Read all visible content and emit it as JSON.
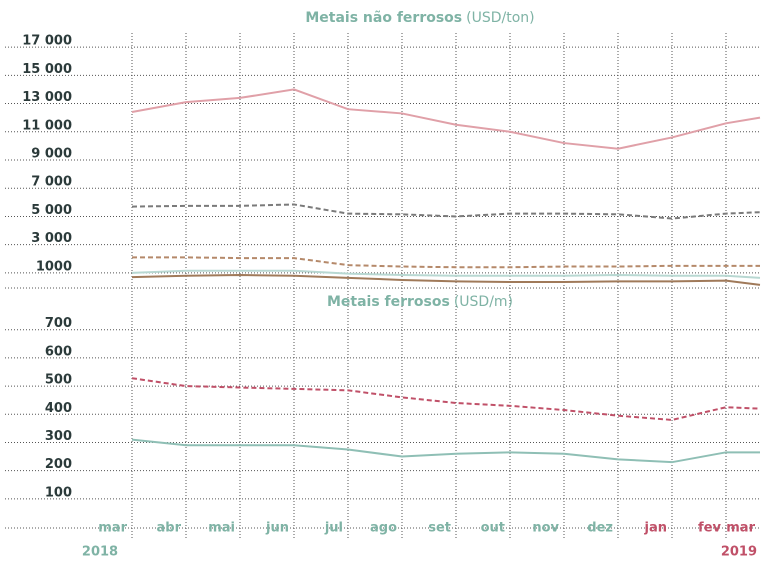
{
  "chart_data": [
    {
      "type": "line",
      "title": "Metais não ferrosos",
      "unit": "(USD/ton)",
      "title_color": "#7fb3a5",
      "ylim": [
        0,
        18000
      ],
      "yticks": [
        {
          "value": 1000,
          "label": "1000"
        },
        {
          "value": 3000,
          "label": "3 000"
        },
        {
          "value": 5000,
          "label": "5 000"
        },
        {
          "value": 7000,
          "label": "7 000"
        },
        {
          "value": 9000,
          "label": "9 000"
        },
        {
          "value": 11000,
          "label": "11 000"
        },
        {
          "value": 13000,
          "label": "13 000"
        },
        {
          "value": 15000,
          "label": "15 000"
        },
        {
          "value": 17000,
          "label": "17 000"
        }
      ],
      "grid": true,
      "series": [
        {
          "color": "#e0a0a8",
          "dash": false,
          "values": [
            12400,
            13100,
            13400,
            14000,
            12600,
            12300,
            11500,
            11000,
            10200,
            9800,
            10600,
            11600,
            12000
          ]
        },
        {
          "color": "#7a7a7a",
          "dash": true,
          "values": [
            5700,
            5750,
            5750,
            5850,
            5200,
            5150,
            5000,
            5200,
            5200,
            5150,
            4850,
            5200,
            5300
          ]
        },
        {
          "color": "#b5896a",
          "dash": true,
          "values": [
            2100,
            2100,
            2050,
            2050,
            1550,
            1450,
            1400,
            1400,
            1450,
            1450,
            1500,
            1500,
            1500
          ]
        },
        {
          "color": "#b8d8d2",
          "dash": false,
          "values": [
            1000,
            1150,
            1150,
            1150,
            950,
            850,
            800,
            800,
            800,
            850,
            800,
            800,
            650
          ]
        },
        {
          "color": "#a07a5a",
          "dash": false,
          "values": [
            700,
            800,
            850,
            800,
            650,
            500,
            400,
            350,
            350,
            400,
            400,
            450,
            150
          ]
        }
      ]
    },
    {
      "type": "line",
      "title": "Metais ferrosos",
      "unit": "(USD/m)",
      "title_color": "#7fb3a5",
      "ylim": [
        0,
        770
      ],
      "yticks": [
        100,
        200,
        300,
        400,
        500,
        600,
        700
      ],
      "grid": true,
      "series": [
        {
          "color": "#c05068",
          "dash": true,
          "values": [
            528,
            500,
            495,
            490,
            485,
            460,
            440,
            430,
            415,
            395,
            380,
            425,
            420
          ]
        },
        {
          "color": "#8fbfb5",
          "dash": false,
          "values": [
            310,
            290,
            290,
            290,
            275,
            250,
            260,
            265,
            260,
            240,
            230,
            265,
            265
          ]
        }
      ]
    }
  ],
  "x_axis": {
    "categories": [
      "mar",
      "abr",
      "mai",
      "jun",
      "jul",
      "ago",
      "set",
      "out",
      "nov",
      "dez",
      "jan",
      "fev",
      "mar"
    ],
    "category_colors": [
      "#7fb3a5",
      "#7fb3a5",
      "#7fb3a5",
      "#7fb3a5",
      "#7fb3a5",
      "#7fb3a5",
      "#7fb3a5",
      "#7fb3a5",
      "#7fb3a5",
      "#7fb3a5",
      "#c05068",
      "#c05068",
      "#c05068"
    ],
    "years": [
      "2018",
      "2019"
    ]
  }
}
